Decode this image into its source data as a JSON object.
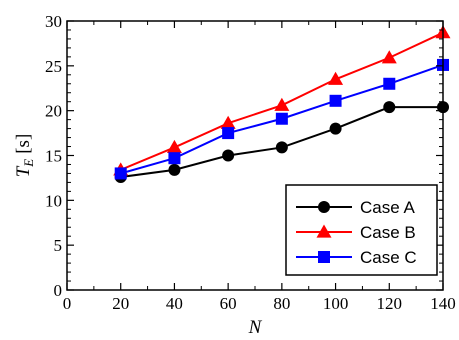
{
  "chart_data": {
    "type": "line",
    "title": "",
    "xlabel": "N",
    "ylabel": {
      "symbol": "T",
      "subscript": "E",
      "unit": "[s]"
    },
    "xlim": [
      0,
      140
    ],
    "ylim": [
      0,
      30
    ],
    "x_ticks": [
      "0",
      "20",
      "40",
      "60",
      "80",
      "100",
      "120",
      "140"
    ],
    "y_ticks": [
      "0",
      "5",
      "10",
      "15",
      "20",
      "25",
      "30"
    ],
    "grid": false,
    "legend_position": "bottom-right",
    "x": [
      20,
      40,
      60,
      80,
      100,
      120,
      140
    ],
    "series": [
      {
        "name": "Case A",
        "color": "#000000",
        "marker": "circle",
        "values": [
          12.6,
          13.4,
          15.0,
          15.9,
          18.0,
          20.4,
          20.4
        ]
      },
      {
        "name": "Case B",
        "color": "#ff0000",
        "marker": "triangle",
        "values": [
          13.4,
          15.9,
          18.6,
          20.6,
          23.5,
          25.9,
          28.7
        ]
      },
      {
        "name": "Case C",
        "color": "#0000ff",
        "marker": "square",
        "values": [
          13.0,
          14.7,
          17.5,
          19.1,
          21.1,
          23.0,
          25.1
        ]
      }
    ]
  }
}
